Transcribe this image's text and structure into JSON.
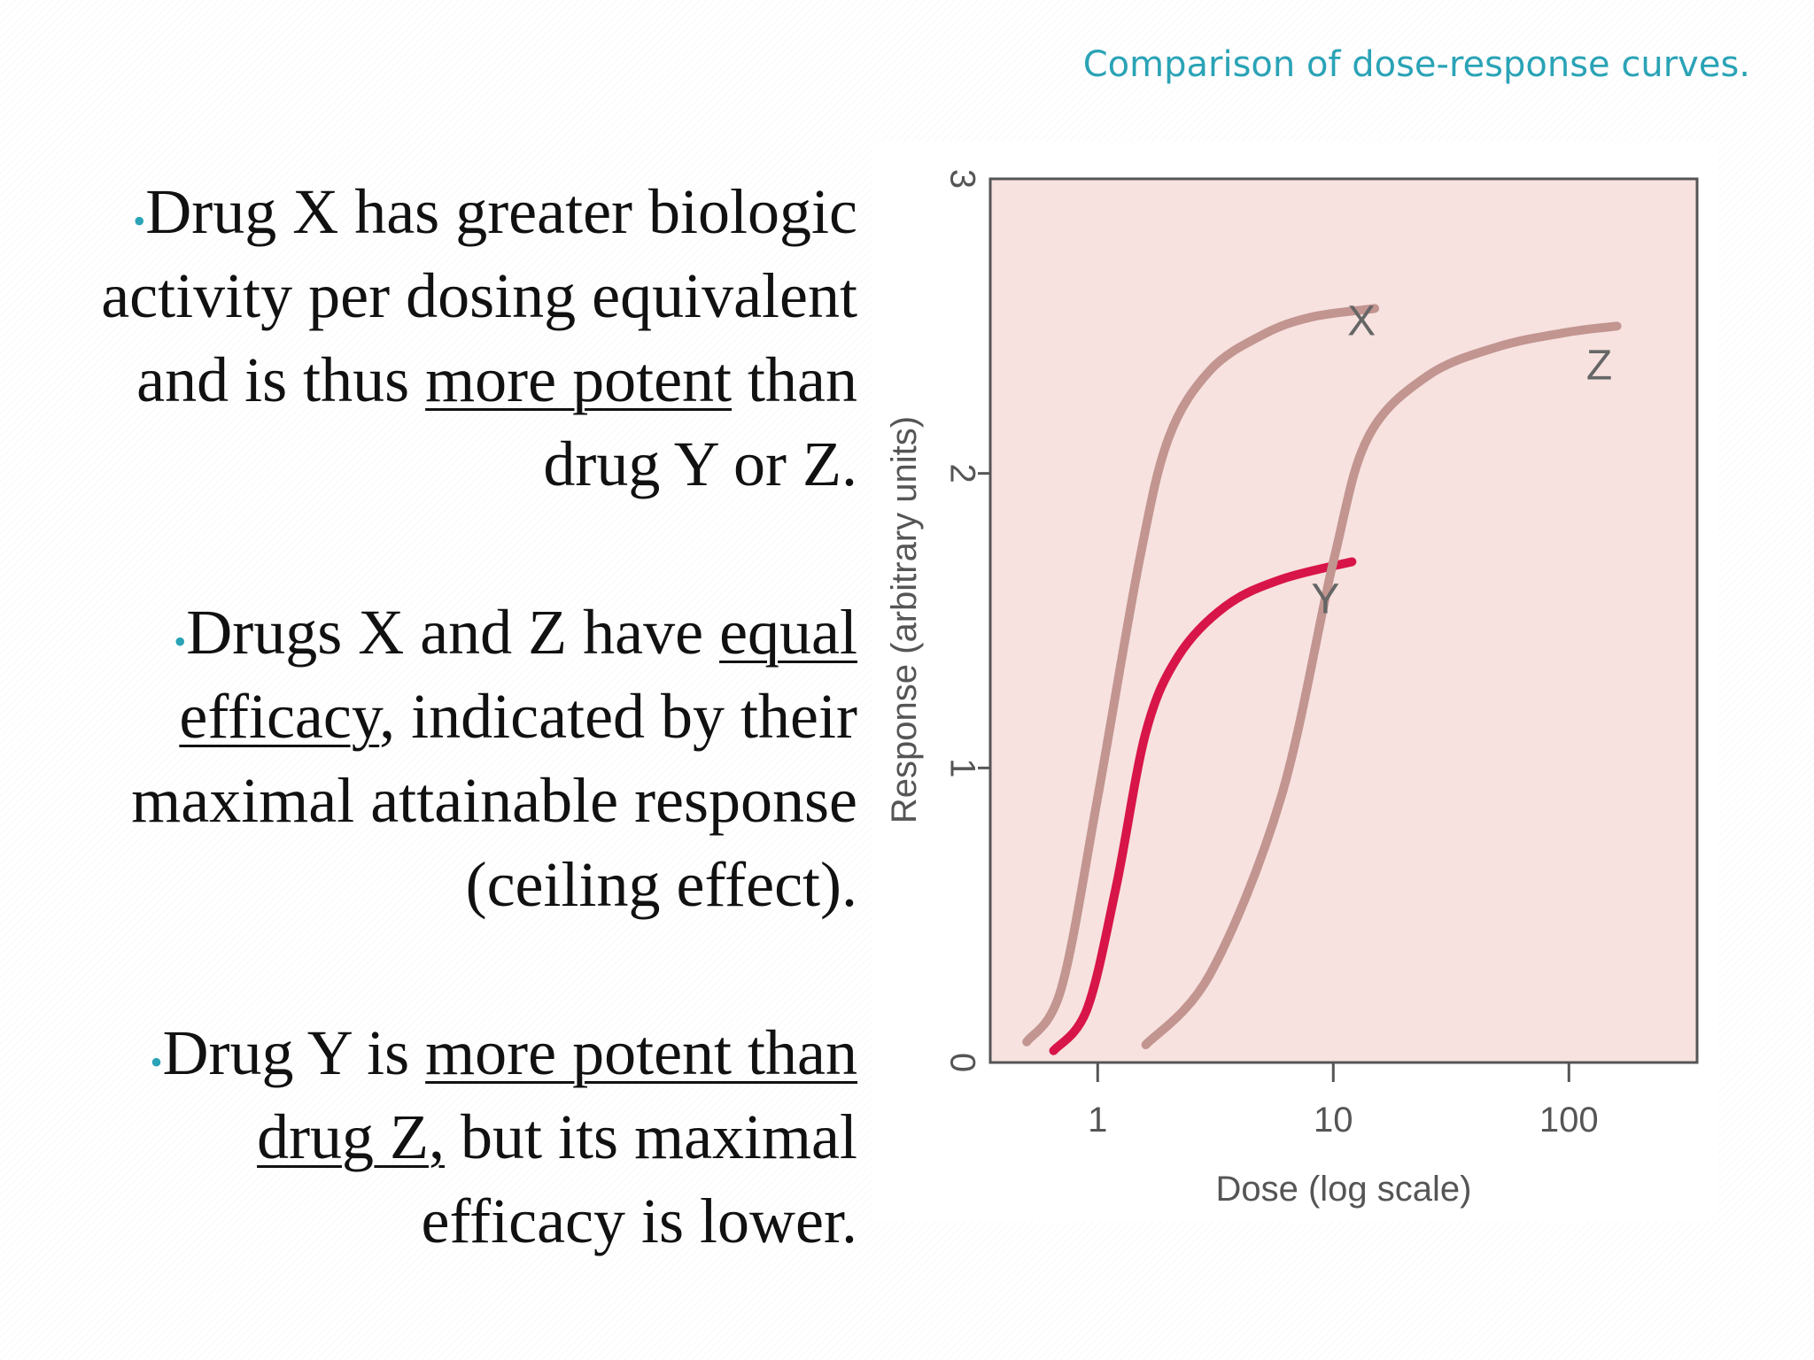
{
  "caption": "Comparison of dose-response curves.",
  "bullets": [
    {
      "marker": "•",
      "segments": [
        {
          "text": "Drug X has greater biologic activity per dosing equivalent and is thus ",
          "underline": false
        },
        {
          "text": "more potent",
          "underline": true
        },
        {
          "text": " than drug Y or Z.",
          "underline": false
        }
      ]
    },
    {
      "marker": "•",
      "segments": [
        {
          "text": "Drugs X and Z have ",
          "underline": false
        },
        {
          "text": "equal efficacy",
          "underline": true
        },
        {
          "text": ", indicated by their maximal attainable response (ceiling effect).",
          "underline": false
        }
      ]
    },
    {
      "marker": "•",
      "segments": [
        {
          "text": "Drug Y is ",
          "underline": false
        },
        {
          "text": "more potent than drug Z,",
          "underline": true
        },
        {
          "text": " but its maximal efficacy is lower.",
          "underline": false
        }
      ]
    }
  ],
  "colors": {
    "plot_bg": "#f7e2e0",
    "xz_curve": "#c29590",
    "y_curve": "#d81548",
    "accent": "#2aa3b6"
  },
  "chart_data": {
    "type": "line",
    "xlabel": "Dose (log scale)",
    "ylabel": "Response (arbitrary units)",
    "x_scale": "log",
    "xlim": [
      0.35,
      350
    ],
    "ylim": [
      0,
      3
    ],
    "x_ticks": [
      {
        "value": 1,
        "label": "1"
      },
      {
        "value": 10,
        "label": "10"
      },
      {
        "value": 100,
        "label": "100"
      }
    ],
    "y_ticks": [
      {
        "value": 0,
        "label": "0"
      },
      {
        "value": 1,
        "label": "1"
      },
      {
        "value": 2,
        "label": "2"
      },
      {
        "value": 3,
        "label": "3"
      }
    ],
    "grid": false,
    "series": [
      {
        "name": "X",
        "points": [
          [
            0.5,
            0.07
          ],
          [
            0.7,
            0.25
          ],
          [
            1.0,
            0.9
          ],
          [
            1.5,
            1.7
          ],
          [
            2.0,
            2.12
          ],
          [
            3.0,
            2.35
          ],
          [
            5.0,
            2.47
          ],
          [
            8.0,
            2.53
          ],
          [
            15.0,
            2.56
          ]
        ]
      },
      {
        "name": "Y",
        "points": [
          [
            0.65,
            0.04
          ],
          [
            0.9,
            0.18
          ],
          [
            1.2,
            0.6
          ],
          [
            1.6,
            1.12
          ],
          [
            2.2,
            1.38
          ],
          [
            3.5,
            1.55
          ],
          [
            6.0,
            1.64
          ],
          [
            12.0,
            1.7
          ]
        ]
      },
      {
        "name": "Z",
        "points": [
          [
            1.6,
            0.06
          ],
          [
            3.0,
            0.3
          ],
          [
            6.0,
            0.9
          ],
          [
            10.0,
            1.7
          ],
          [
            14.0,
            2.12
          ],
          [
            25.0,
            2.33
          ],
          [
            50.0,
            2.43
          ],
          [
            100.0,
            2.48
          ],
          [
            160.0,
            2.5
          ]
        ]
      }
    ]
  }
}
